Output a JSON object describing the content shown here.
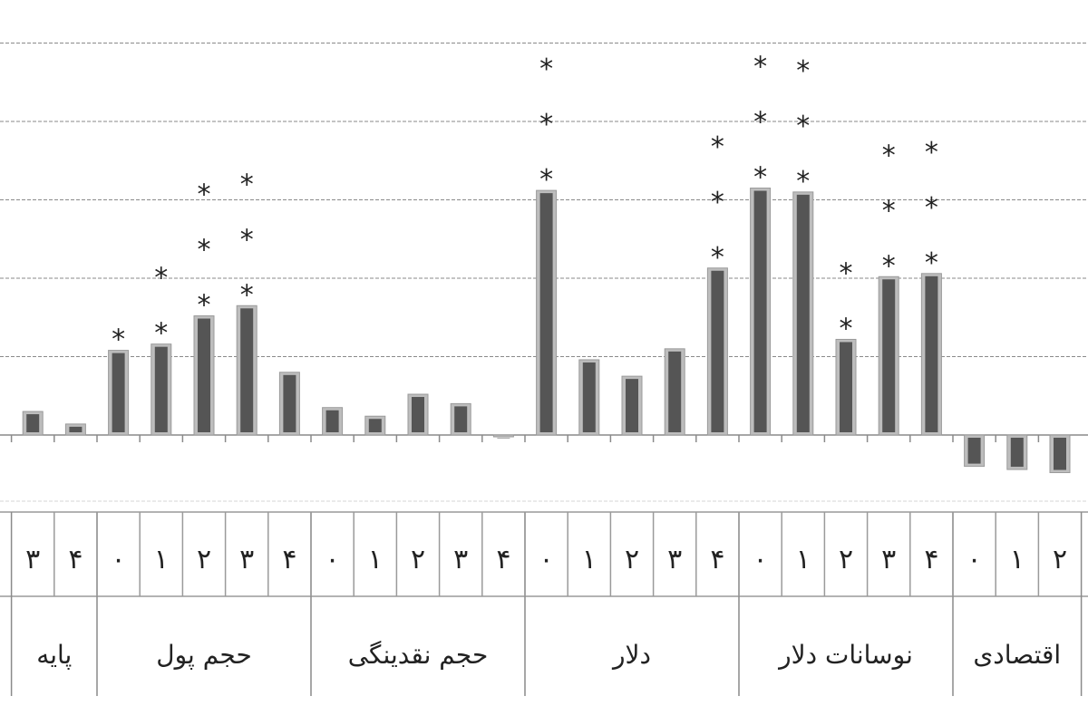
{
  "chart_data": {
    "type": "bar",
    "grid": true,
    "ylim": [
      -0.8,
      5.2
    ],
    "y_gridlines": [
      0,
      1,
      2,
      3,
      4,
      5
    ],
    "groups": [
      {
        "label": "پایه",
        "ticks": [
          "۳",
          "۴"
        ],
        "values": [
          0.3,
          0.14
        ],
        "stars": [
          "",
          ""
        ]
      },
      {
        "label": "حجم پول",
        "ticks": [
          "۰",
          "۱",
          "۲",
          "۳",
          "۴"
        ],
        "values": [
          1.08,
          1.16,
          1.52,
          1.65,
          0.8
        ],
        "stars": [
          "*",
          "**",
          "***",
          "***",
          ""
        ]
      },
      {
        "label": "حجم نقدینگی",
        "ticks": [
          "۰",
          "۱",
          "۲",
          "۳",
          "۴"
        ],
        "values": [
          0.35,
          0.24,
          0.52,
          0.4,
          -0.02
        ],
        "stars": [
          "",
          "",
          "",
          "",
          ""
        ]
      },
      {
        "label": "دلار",
        "ticks": [
          "۰",
          "۱",
          "۲",
          "۳",
          "۴"
        ],
        "values": [
          3.12,
          0.96,
          0.75,
          1.1,
          2.13
        ],
        "stars": [
          "***",
          "",
          "",
          "",
          "***"
        ]
      },
      {
        "label": "نوسانات دلار",
        "ticks": [
          "۰",
          "۱",
          "۲",
          "۳",
          "۴"
        ],
        "values": [
          3.15,
          3.1,
          1.22,
          2.02,
          2.06
        ],
        "stars": [
          "***",
          "***",
          "**",
          "***",
          "***"
        ]
      },
      {
        "label": "اقتصادی",
        "ticks": [
          "۰",
          "۱",
          "۲"
        ],
        "values": [
          -0.4,
          -0.44,
          -0.48
        ],
        "stars": [
          "",
          "",
          ""
        ]
      }
    ]
  }
}
